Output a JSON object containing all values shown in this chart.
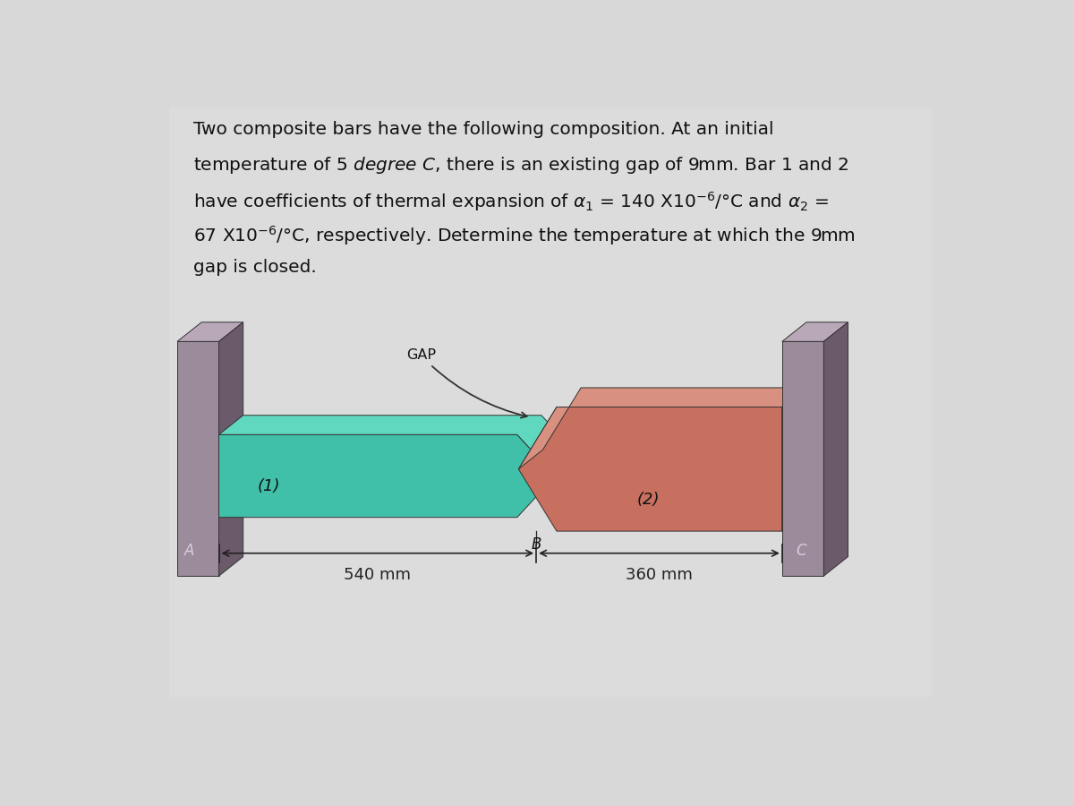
{
  "bg_color": "#d8d8d8",
  "center_bg": "#e8e8e8",
  "wall_color_front": "#9b8b9b",
  "wall_color_side": "#6a5a6a",
  "wall_color_top": "#b8a8b8",
  "bar1_color_front": "#40c0a8",
  "bar1_color_top": "#60d8c0",
  "bar1_color_side": "#30907a",
  "bar2_color_front": "#c87060",
  "bar2_color_top": "#d89080",
  "bar2_color_side": "#905040",
  "dim_color": "#222222",
  "label_color": "#111111",
  "label_A_color": "#ddccdd",
  "label_C_color": "#ddccdd",
  "text_lines": [
    "Two composite bars have the following composition. At an initial",
    "temperature of 5 \\textit{degree C}, there is an existing gap of 9mm. Bar 1 and 2",
    "have coefficients of thermal expansion of $\\alpha_1$ = 140 X10$^{-6}$/°C and $\\alpha_2$ =",
    "67 X10$^{-6}$/°C, respectively. Determine the temperature at which the 9mm",
    "gap is closed."
  ],
  "label_gap": "GAP",
  "label_1": "(1)",
  "label_2": "(2)",
  "label_A": "A",
  "label_B": "B",
  "label_C": "C",
  "dim_1": "540 mm",
  "dim_2": "360 mm"
}
